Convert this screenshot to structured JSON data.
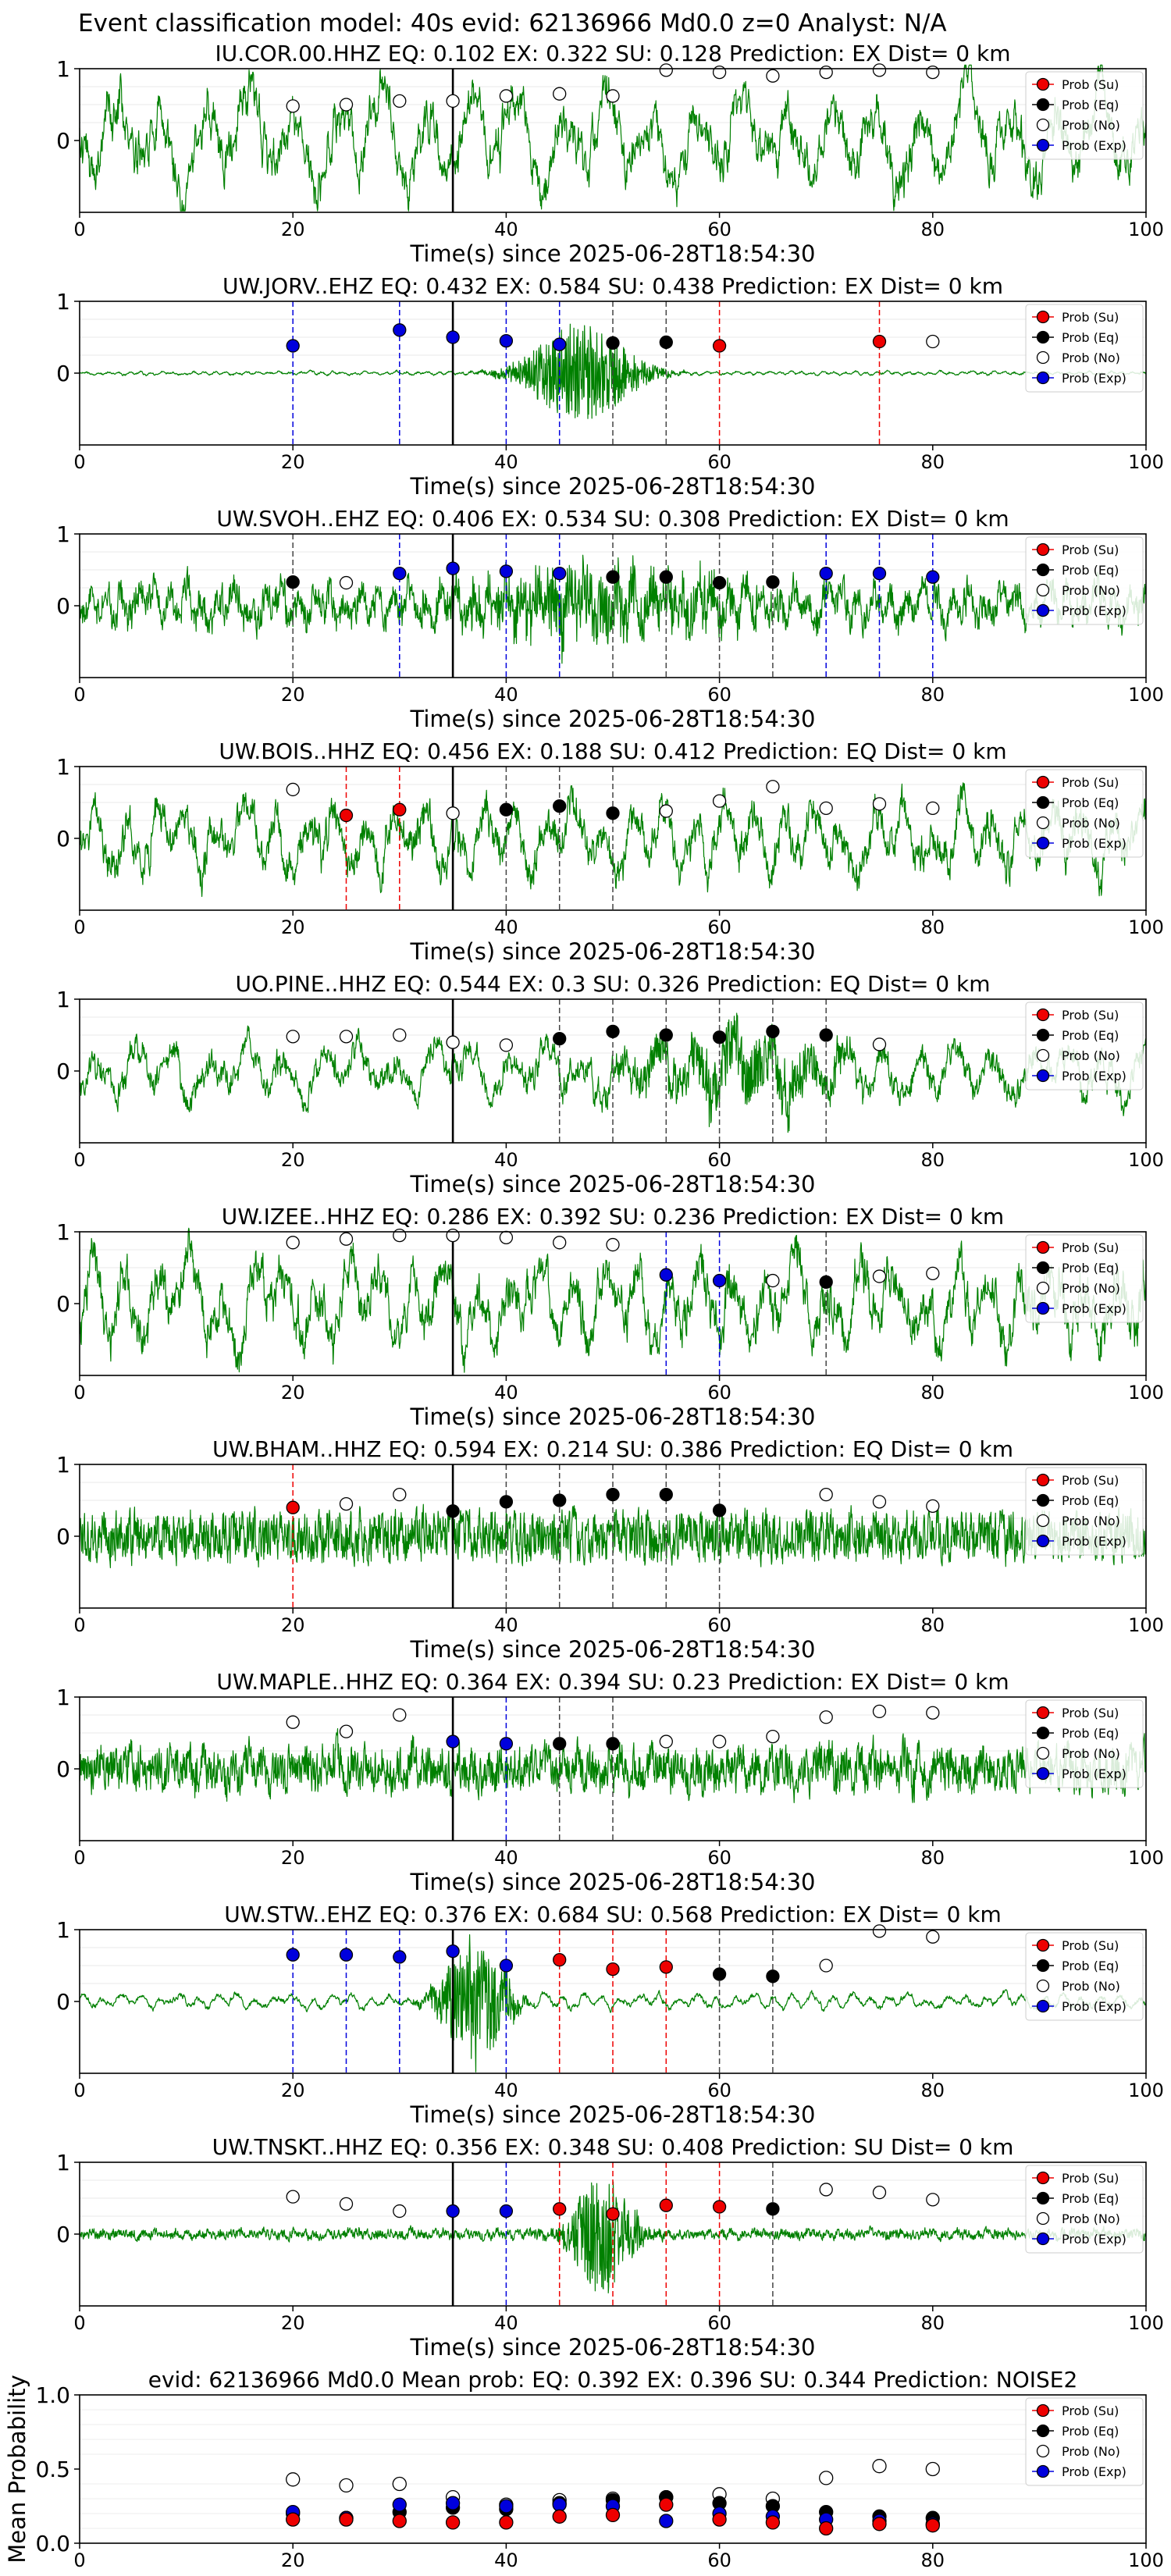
{
  "figure": {
    "suptitle": "Event classification model: 40s evid: 62136966 Md0.0 z=0 Analyst: N/A"
  },
  "legend_labels": [
    "Prob (Su)",
    "Prob (Eq)",
    "Prob (No)",
    "Prob (Exp)"
  ],
  "colors": {
    "su": "#ee0000",
    "eq": "#000000",
    "no": "#ffffff",
    "exp": "#0000dd",
    "trace": "#008000",
    "origin_line": "#000000"
  },
  "chart_data": [
    {
      "type": "line",
      "title": "IU.COR.00.HHZ   EQ: 0.102   EX: 0.322   SU: 0.128   Prediction: EX    Dist= 0 km",
      "xlabel": "Time(s) since 2025-06-28T18:54:30",
      "xlim": [
        0,
        100
      ],
      "ylim": [
        -1,
        1
      ],
      "xticks": [
        0,
        20,
        40,
        60,
        80,
        100
      ],
      "yticks": [
        1,
        0
      ],
      "origin_time": 35,
      "waveform": {
        "amp": 0.55,
        "noise": 0.15,
        "period": 4.2,
        "seed": 1,
        "envelope": "none"
      },
      "windows": [
        20,
        25,
        30,
        35,
        40,
        45,
        50,
        55,
        60,
        65,
        70,
        75,
        80
      ],
      "classes": [
        "no",
        "no",
        "no",
        "no",
        "no",
        "no",
        "no",
        "no",
        "no",
        "no",
        "no",
        "no",
        "no"
      ],
      "probs": [
        0.48,
        0.5,
        0.55,
        0.55,
        0.62,
        0.65,
        0.62,
        0.98,
        0.95,
        0.9,
        0.95,
        0.98,
        0.95
      ]
    },
    {
      "type": "line",
      "title": "UW.JORV..EHZ   EQ: 0.432   EX: 0.584   SU: 0.438   Prediction: EX    Dist= 0 km",
      "xlabel": "Time(s) since 2025-06-28T18:54:30",
      "xlim": [
        0,
        100
      ],
      "ylim": [
        -1,
        1
      ],
      "xticks": [
        0,
        20,
        40,
        60,
        80,
        100
      ],
      "yticks": [
        1,
        0
      ],
      "origin_time": 35,
      "waveform": {
        "amp": 0.02,
        "noise": 0.01,
        "period": 1.0,
        "seed": 2,
        "envelope": "burst",
        "burst_center": 47,
        "burst_width": 5,
        "burst_amp": 0.65
      },
      "windows": [
        20,
        30,
        35,
        40,
        45,
        50,
        55,
        60,
        75,
        80
      ],
      "classes": [
        "exp",
        "exp",
        "exp",
        "exp",
        "exp",
        "eq",
        "eq",
        "su",
        "su",
        "no"
      ],
      "probs": [
        0.38,
        0.6,
        0.5,
        0.45,
        0.4,
        0.42,
        0.43,
        0.38,
        0.44,
        0.44
      ]
    },
    {
      "type": "line",
      "title": "UW.SVOH..EHZ   EQ: 0.406   EX: 0.534   SU: 0.308   Prediction: EX    Dist= 0 km",
      "xlabel": "Time(s) since 2025-06-28T18:54:30",
      "xlim": [
        0,
        100
      ],
      "ylim": [
        -1,
        1
      ],
      "xticks": [
        0,
        20,
        40,
        60,
        80,
        100
      ],
      "yticks": [
        1,
        0
      ],
      "origin_time": 35,
      "waveform": {
        "amp": 0.2,
        "noise": 0.22,
        "period": 1.5,
        "seed": 3,
        "envelope": "burst",
        "burst_center": 48,
        "burst_width": 14,
        "burst_amp": 0.35
      },
      "windows": [
        20,
        25,
        30,
        35,
        40,
        45,
        50,
        55,
        60,
        65,
        70,
        75,
        80
      ],
      "classes": [
        "eq",
        "no",
        "exp",
        "exp",
        "exp",
        "exp",
        "eq",
        "eq",
        "eq",
        "eq",
        "exp",
        "exp",
        "exp"
      ],
      "probs": [
        0.33,
        0.32,
        0.45,
        0.52,
        0.48,
        0.45,
        0.4,
        0.4,
        0.32,
        0.33,
        0.45,
        0.45,
        0.4
      ]
    },
    {
      "type": "line",
      "title": "UW.BOIS..HHZ   EQ: 0.456   EX: 0.188   SU: 0.412   Prediction: EQ    Dist= 0 km",
      "xlabel": "Time(s) since 2025-06-28T18:54:30",
      "xlim": [
        0,
        100
      ],
      "ylim": [
        -1,
        1
      ],
      "xticks": [
        0,
        20,
        40,
        60,
        80,
        100
      ],
      "yticks": [
        1,
        0
      ],
      "origin_time": 35,
      "waveform": {
        "amp": 0.4,
        "noise": 0.18,
        "period": 2.8,
        "seed": 4,
        "envelope": "none"
      },
      "windows": [
        20,
        25,
        30,
        35,
        40,
        45,
        50,
        55,
        60,
        65,
        70,
        75,
        80
      ],
      "classes": [
        "no",
        "su",
        "su",
        "no",
        "eq",
        "eq",
        "eq",
        "no",
        "no",
        "no",
        "no",
        "no",
        "no"
      ],
      "probs": [
        0.68,
        0.32,
        0.4,
        0.35,
        0.4,
        0.45,
        0.35,
        0.38,
        0.52,
        0.72,
        0.42,
        0.48,
        0.42
      ]
    },
    {
      "type": "line",
      "title": "UO.PINE..HHZ   EQ: 0.544   EX: 0.3   SU: 0.326   Prediction: EQ    Dist= 0 km",
      "xlabel": "Time(s) since 2025-06-28T18:54:30",
      "xlim": [
        0,
        100
      ],
      "ylim": [
        -1,
        1
      ],
      "xticks": [
        0,
        20,
        40,
        60,
        80,
        100
      ],
      "yticks": [
        1,
        0
      ],
      "origin_time": 35,
      "waveform": {
        "amp": 0.32,
        "noise": 0.12,
        "period": 3.5,
        "seed": 5,
        "envelope": "burst",
        "burst_center": 62,
        "burst_width": 10,
        "burst_amp": 0.35
      },
      "windows": [
        20,
        25,
        30,
        35,
        40,
        45,
        50,
        55,
        60,
        65,
        70,
        75
      ],
      "classes": [
        "no",
        "no",
        "no",
        "no",
        "no",
        "eq",
        "eq",
        "eq",
        "eq",
        "eq",
        "eq",
        "no"
      ],
      "probs": [
        0.48,
        0.48,
        0.5,
        0.4,
        0.36,
        0.45,
        0.55,
        0.5,
        0.47,
        0.55,
        0.5,
        0.37
      ]
    },
    {
      "type": "line",
      "title": "UW.IZEE..HHZ   EQ: 0.286   EX: 0.392   SU: 0.236   Prediction: EX    Dist= 0 km",
      "xlabel": "Time(s) since 2025-06-28T18:54:30",
      "xlim": [
        0,
        100
      ],
      "ylim": [
        -1,
        1
      ],
      "xticks": [
        0,
        20,
        40,
        60,
        80,
        100
      ],
      "yticks": [
        1,
        0
      ],
      "origin_time": 35,
      "waveform": {
        "amp": 0.5,
        "noise": 0.2,
        "period": 3.0,
        "seed": 6,
        "envelope": "none"
      },
      "windows": [
        20,
        25,
        30,
        35,
        40,
        45,
        50,
        55,
        60,
        65,
        70,
        75,
        80
      ],
      "classes": [
        "no",
        "no",
        "no",
        "no",
        "no",
        "no",
        "no",
        "exp",
        "exp",
        "no",
        "eq",
        "no",
        "no"
      ],
      "probs": [
        0.85,
        0.9,
        0.95,
        0.95,
        0.92,
        0.85,
        0.82,
        0.4,
        0.32,
        0.32,
        0.3,
        0.38,
        0.42
      ]
    },
    {
      "type": "line",
      "title": "UW.BHAM..HHZ   EQ: 0.594   EX: 0.214   SU: 0.386   Prediction: EQ    Dist= 0 km",
      "xlabel": "Time(s) since 2025-06-28T18:54:30",
      "xlim": [
        0,
        100
      ],
      "ylim": [
        -1,
        1
      ],
      "xticks": [
        0,
        20,
        40,
        60,
        80,
        100
      ],
      "yticks": [
        1,
        0
      ],
      "origin_time": 35,
      "waveform": {
        "amp": 0.05,
        "noise": 0.38,
        "period": 1.0,
        "seed": 7,
        "envelope": "none"
      },
      "windows": [
        20,
        25,
        30,
        35,
        40,
        45,
        50,
        55,
        60,
        70,
        75,
        80
      ],
      "classes": [
        "su",
        "no",
        "no",
        "eq",
        "eq",
        "eq",
        "eq",
        "eq",
        "eq",
        "no",
        "no",
        "no"
      ],
      "probs": [
        0.4,
        0.45,
        0.58,
        0.35,
        0.48,
        0.5,
        0.58,
        0.58,
        0.36,
        0.58,
        0.48,
        0.42
      ]
    },
    {
      "type": "line",
      "title": "UW.MAPLE..HHZ   EQ: 0.364   EX: 0.394   SU: 0.23   Prediction: EX    Dist= 0 km",
      "xlabel": "Time(s) since 2025-06-28T18:54:30",
      "xlim": [
        0,
        100
      ],
      "ylim": [
        -1,
        1
      ],
      "xticks": [
        0,
        20,
        40,
        60,
        80,
        100
      ],
      "yticks": [
        1,
        0
      ],
      "origin_time": 35,
      "waveform": {
        "amp": 0.12,
        "noise": 0.32,
        "period": 1.4,
        "seed": 8,
        "envelope": "none"
      },
      "windows": [
        20,
        25,
        30,
        35,
        40,
        45,
        50,
        55,
        60,
        65,
        70,
        75,
        80
      ],
      "classes": [
        "no",
        "no",
        "no",
        "exp",
        "exp",
        "eq",
        "eq",
        "no",
        "no",
        "no",
        "no",
        "no",
        "no"
      ],
      "probs": [
        0.65,
        0.52,
        0.75,
        0.38,
        0.35,
        0.35,
        0.35,
        0.38,
        0.38,
        0.45,
        0.72,
        0.8,
        0.78
      ]
    },
    {
      "type": "line",
      "title": "UW.STW..EHZ   EQ: 0.376   EX: 0.684   SU: 0.568   Prediction: EX    Dist= 0 km",
      "xlabel": "Time(s) since 2025-06-28T18:54:30",
      "xlim": [
        0,
        100
      ],
      "ylim": [
        -1,
        1
      ],
      "xticks": [
        0,
        20,
        40,
        60,
        80,
        100
      ],
      "yticks": [
        1,
        0
      ],
      "origin_time": 35,
      "waveform": {
        "amp": 0.08,
        "noise": 0.02,
        "period": 1.8,
        "seed": 9,
        "envelope": "burst",
        "burst_center": 37,
        "burst_width": 3,
        "burst_amp": 0.85
      },
      "windows": [
        20,
        25,
        30,
        35,
        40,
        45,
        50,
        55,
        60,
        65,
        70,
        75,
        80
      ],
      "classes": [
        "exp",
        "exp",
        "exp",
        "exp",
        "exp",
        "su",
        "su",
        "su",
        "eq",
        "eq",
        "no",
        "no",
        "no"
      ],
      "probs": [
        0.65,
        0.65,
        0.62,
        0.7,
        0.5,
        0.58,
        0.45,
        0.48,
        0.38,
        0.35,
        0.5,
        0.98,
        0.9
      ]
    },
    {
      "type": "line",
      "title": "UW.TNSKT..HHZ   EQ: 0.356   EX: 0.348   SU: 0.408   Prediction: SU    Dist= 0 km",
      "xlabel": "Time(s) since 2025-06-28T18:54:30",
      "xlim": [
        0,
        100
      ],
      "ylim": [
        -1,
        1
      ],
      "xticks": [
        0,
        20,
        40,
        60,
        80,
        100
      ],
      "yticks": [
        1,
        0
      ],
      "origin_time": 35,
      "waveform": {
        "amp": 0.03,
        "noise": 0.07,
        "period": 1.0,
        "seed": 10,
        "envelope": "burst",
        "burst_center": 49,
        "burst_width": 3,
        "burst_amp": 0.75
      },
      "windows": [
        20,
        25,
        30,
        35,
        40,
        45,
        50,
        55,
        60,
        65,
        70,
        75,
        80
      ],
      "classes": [
        "no",
        "no",
        "no",
        "exp",
        "exp",
        "su",
        "su",
        "su",
        "su",
        "eq",
        "no",
        "no",
        "no"
      ],
      "probs": [
        0.52,
        0.42,
        0.32,
        0.32,
        0.32,
        0.35,
        0.28,
        0.4,
        0.38,
        0.35,
        0.62,
        0.58,
        0.48
      ]
    },
    {
      "type": "scatter",
      "title": "evid: 62136966   Md0.0    Mean prob:    EQ: 0.392   EX: 0.396   SU: 0.344    Prediction: NOISE2",
      "ylabel": "Mean Probability",
      "xlim": [
        0,
        100
      ],
      "ylim": [
        0,
        1
      ],
      "xticks": [
        0,
        20,
        40,
        60,
        80,
        100
      ],
      "yticks": [
        1.0,
        0.5,
        0.0
      ],
      "x": [
        20,
        25,
        30,
        35,
        40,
        45,
        50,
        55,
        60,
        65,
        70,
        75,
        80
      ],
      "series": [
        {
          "name": "Prob (No)",
          "key": "no",
          "values": [
            0.43,
            0.39,
            0.4,
            0.31,
            0.26,
            0.29,
            0.3,
            0.31,
            0.33,
            0.3,
            0.44,
            0.52,
            0.5
          ]
        },
        {
          "name": "Prob (Eq)",
          "key": "eq",
          "values": [
            0.2,
            0.17,
            0.21,
            0.24,
            0.23,
            0.27,
            0.29,
            0.31,
            0.27,
            0.25,
            0.21,
            0.18,
            0.17
          ]
        },
        {
          "name": "Prob (Exp)",
          "key": "exp",
          "values": [
            0.21,
            0.17,
            0.26,
            0.27,
            0.25,
            0.26,
            0.25,
            0.15,
            0.2,
            0.18,
            0.16,
            0.15,
            0.13
          ]
        },
        {
          "name": "Prob (Su)",
          "key": "su",
          "values": [
            0.16,
            0.16,
            0.15,
            0.14,
            0.14,
            0.18,
            0.19,
            0.26,
            0.16,
            0.14,
            0.1,
            0.13,
            0.12
          ]
        }
      ]
    }
  ]
}
